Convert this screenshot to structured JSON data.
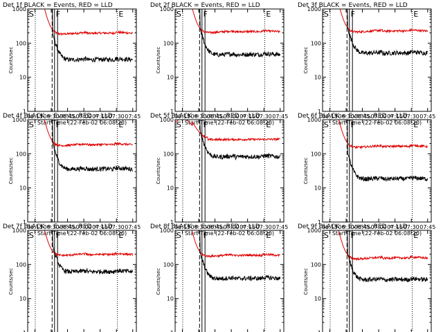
{
  "chart_data": [
    {
      "type": "line",
      "title": "Det 1f BLACK = Events, RED = LLD",
      "xlabel": "Start Time (22-Feb-02 06:08:20)",
      "ylabel": "Counts/sec",
      "markers": [
        "S",
        "F",
        "E"
      ],
      "shape": "std",
      "events_level": 32,
      "lld_level": 190,
      "ylim": [
        1,
        1000
      ],
      "yscale": "log"
    },
    {
      "type": "line",
      "title": "Det 2f BLACK = Events, RED = LLD",
      "xlabel": "Start Time (22-Feb-02 06:08:20)",
      "ylabel": "Counts/sec",
      "markers": [
        "S",
        "F",
        "E"
      ],
      "shape": "std",
      "events_level": 45,
      "lld_level": 210,
      "ylim": [
        1,
        1000
      ],
      "yscale": "log"
    },
    {
      "type": "line",
      "title": "Det 3f BLACK = Events, RED = LLD",
      "xlabel": "Start Time (22-Feb-02 06:08:20)",
      "ylabel": "Counts/sec",
      "markers": [
        "S",
        "F",
        "E"
      ],
      "shape": "std",
      "events_level": 50,
      "lld_level": 220,
      "ylim": [
        1,
        1000
      ],
      "yscale": "log"
    },
    {
      "type": "line",
      "title": "Det 4f BLACK = Events, RED = LLD",
      "xlabel": "Start Time (22-Feb-02 06:08:20)",
      "ylabel": "Counts/sec",
      "markers": [
        "S",
        "F",
        "E"
      ],
      "shape": "std",
      "events_level": 35,
      "lld_level": 180,
      "ylim": [
        1,
        1000
      ],
      "yscale": "log"
    },
    {
      "type": "line",
      "title": "Det 5f BLACK = Events, RED = LLD",
      "xlabel": "Start Time (22-Feb-02 06:08:20)",
      "ylabel": "Counts/sec",
      "markers": [
        "S",
        "F",
        "E"
      ],
      "shape": "det5",
      "events_level": 80,
      "lld_level": 260,
      "ylim": [
        1,
        1000
      ],
      "yscale": "log"
    },
    {
      "type": "line",
      "title": "Det 6f BLACK = Events, RED = LLD",
      "xlabel": "Start Time (22-Feb-02 06:08:20)",
      "ylabel": "Counts/sec",
      "markers": [
        "S",
        "F",
        "E"
      ],
      "shape": "std",
      "events_level": 18,
      "lld_level": 160,
      "ylim": [
        1,
        1000
      ],
      "yscale": "log"
    },
    {
      "type": "line",
      "title": "Det 7f BLACK = Events, RED = LLD",
      "xlabel": "Start Time (22-Feb-02 06:08:20)",
      "ylabel": "Counts/sec",
      "markers": [
        "S",
        "F",
        "E"
      ],
      "shape": "std",
      "events_level": 60,
      "lld_level": 190,
      "ylim": [
        1,
        1000
      ],
      "yscale": "log"
    },
    {
      "type": "line",
      "title": "Det 8f BLACK = Events, RED = LLD",
      "xlabel": "Start Time (22-Feb-02 06:08:20)",
      "ylabel": "Counts/sec",
      "markers": [
        "S",
        "F",
        "E"
      ],
      "shape": "std",
      "events_level": 38,
      "lld_level": 180,
      "ylim": [
        1,
        1000
      ],
      "yscale": "log"
    },
    {
      "type": "line",
      "title": "Det 9f BLACK = Events, RED = LLD",
      "xlabel": "Start Time (22-Feb-02 06:08:20)",
      "ylabel": "Counts/sec",
      "markers": [
        "S",
        "F",
        "E"
      ],
      "shape": "std",
      "events_level": 35,
      "lld_level": 150,
      "ylim": [
        1,
        1000
      ],
      "yscale": "log"
    }
  ],
  "axes": {
    "x_ticks": [
      "06:15",
      "06:30",
      "06:45",
      "07:00",
      "07:15",
      "07:30",
      "07:45"
    ],
    "y_ticks": [
      "1",
      "10",
      "100",
      "1000"
    ],
    "x_range_minutes": [
      0,
      100
    ],
    "lines_minutes": {
      "dotted_1": 7,
      "dashed": 22.5,
      "S": 0,
      "F_solid_1": 24.7,
      "F_solid_2": 27.5,
      "E_dotted": 82.5
    }
  },
  "colors": {
    "events": "#000000",
    "lld": "#e00000",
    "axes": "#000000"
  }
}
